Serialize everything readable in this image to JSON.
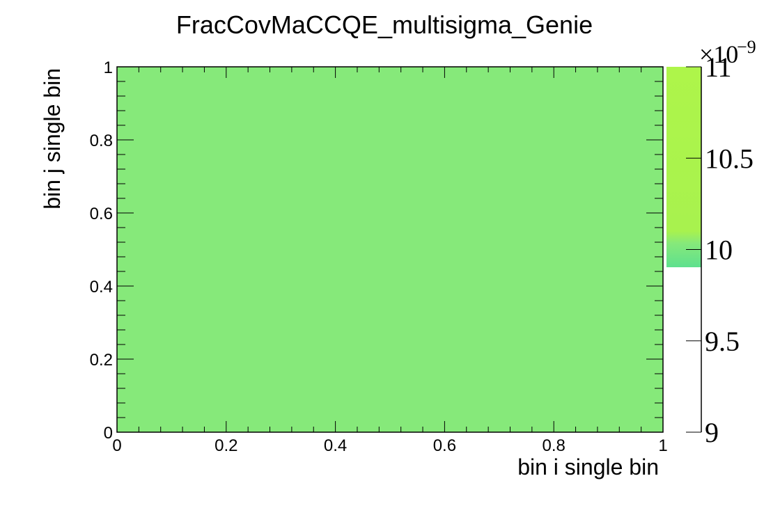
{
  "chart_data": {
    "type": "heatmap",
    "title": "FracCovMaCCQE_multisigma_Genie",
    "xlabel": "bin i single bin",
    "ylabel": "bin j single bin",
    "xlim": [
      0,
      1
    ],
    "ylim": [
      0,
      1
    ],
    "x_ticks": [
      "0",
      "0.2",
      "0.4",
      "0.6",
      "0.8",
      "1"
    ],
    "y_ticks": [
      "0",
      "0.2",
      "0.4",
      "0.6",
      "0.8",
      "1"
    ],
    "cells": [
      {
        "x": [
          0,
          1
        ],
        "y": [
          0,
          1
        ],
        "value": 9.9e-09
      }
    ],
    "colorbar": {
      "range": [
        9,
        11
      ],
      "exponent_label": "×10",
      "exponent": "−9",
      "ticks": [
        "9",
        "9.5",
        "10",
        "10.5",
        "11"
      ]
    },
    "cell_color": "#86e97a",
    "grid": false
  }
}
